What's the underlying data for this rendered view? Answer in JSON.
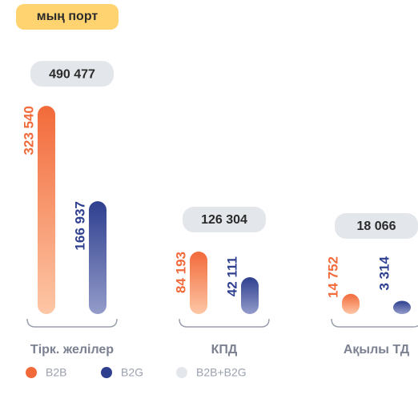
{
  "chart_data": {
    "type": "bar",
    "subtitle": "мың порт",
    "categories": [
      "Тірк. желілер",
      "КПД",
      "Ақылы ТД"
    ],
    "series": [
      {
        "name": "B2B",
        "color": "#f26a3a",
        "values": [
          323540,
          84193,
          14752
        ],
        "value_labels": [
          "323 540",
          "84 193",
          "14 752"
        ]
      },
      {
        "name": "B2G",
        "color": "#2e3f8f",
        "values": [
          166937,
          42111,
          3314
        ],
        "value_labels": [
          "166 937",
          "42 111",
          "3 314"
        ]
      },
      {
        "name": "B2B+B2G",
        "color": "#e3e6ea",
        "values": [
          490477,
          126304,
          18066
        ],
        "value_labels": [
          "490 477",
          "126 304",
          "18 066"
        ]
      }
    ]
  }
}
